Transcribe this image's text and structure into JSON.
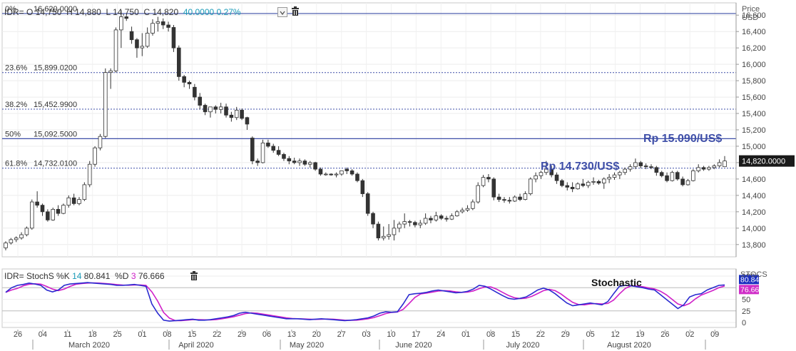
{
  "header": {
    "symbol": "IDR=",
    "open_label": "O",
    "open": "14,750",
    "high_label": "H",
    "high": "14,880",
    "low_label": "L",
    "low": "14,750",
    "close_label": "C",
    "close": "14,820",
    "change": "40.0000",
    "change_pct": "0.27%"
  },
  "stoch_header": {
    "label": "IDR= StochS %K",
    "k_period": "14",
    "k_value": "80.841",
    "d_label": "%D",
    "d_period": "3",
    "d_value": "76.666"
  },
  "price_axis_unit": [
    "Price",
    "USD"
  ],
  "stoch_axis_title": "STOCS",
  "last_price_tag": "14,820.0000",
  "k_tag": "80.841",
  "d_tag": "76.666",
  "annotations": {
    "high_level": "Rp 15.090/US$",
    "low_level": "Rp 14.730/US$",
    "stochastic": "Stochastic"
  },
  "colors": {
    "fib_line": "#3f4fa8",
    "k_line": "#2a2ad0",
    "d_line": "#d020c8",
    "up_candle": "#ffffff",
    "down_candle": "#333333",
    "last_tag_bg": "#1a1a1a",
    "k_tag_bg": "#1b2fc0",
    "d_tag_bg": "#d02ec8"
  },
  "chart_data": {
    "type": "candlestick",
    "y_range": [
      13650,
      16750
    ],
    "y_ticks": [
      13800,
      14000,
      14200,
      14400,
      14600,
      14800,
      15000,
      15200,
      15400,
      15600,
      15800,
      16000,
      16200,
      16400,
      16600
    ],
    "fibonacci": [
      {
        "pct": "0%",
        "value": 16620.0
      },
      {
        "pct": "23.6%",
        "value": 15899.02
      },
      {
        "pct": "38.2%",
        "value": 15452.99
      },
      {
        "pct": "50%",
        "value": 15092.5
      },
      {
        "pct": "61.8%",
        "value": 14732.01
      }
    ],
    "x_tick_labels": [
      "26",
      "04",
      "11",
      "18",
      "25",
      "01",
      "08",
      "15",
      "22",
      "29",
      "06",
      "13",
      "20",
      "27",
      "03",
      "10",
      "17",
      "24",
      "01",
      "08",
      "15",
      "22",
      "29",
      "05",
      "12",
      "19",
      "26",
      "02",
      "09"
    ],
    "month_labels": [
      "March 2020",
      "April 2020",
      "May 2020",
      "June 2020",
      "July 2020",
      "August 2020"
    ],
    "candles": [
      [
        13760,
        13840,
        13730,
        13820
      ],
      [
        13820,
        13880,
        13800,
        13860
      ],
      [
        13860,
        13900,
        13830,
        13880
      ],
      [
        13880,
        13950,
        13860,
        13920
      ],
      [
        13920,
        14020,
        13900,
        14000
      ],
      [
        14000,
        14350,
        13980,
        14320
      ],
      [
        14320,
        14450,
        14250,
        14280
      ],
      [
        14280,
        14300,
        14150,
        14200
      ],
      [
        14200,
        14230,
        14080,
        14100
      ],
      [
        14100,
        14250,
        14090,
        14230
      ],
      [
        14230,
        14280,
        14150,
        14180
      ],
      [
        14180,
        14300,
        14170,
        14280
      ],
      [
        14280,
        14400,
        14250,
        14370
      ],
      [
        14370,
        14420,
        14280,
        14300
      ],
      [
        14300,
        14380,
        14280,
        14350
      ],
      [
        14350,
        14560,
        14330,
        14530
      ],
      [
        14530,
        14820,
        14500,
        14780
      ],
      [
        14780,
        15000,
        14750,
        14980
      ],
      [
        14980,
        15150,
        14950,
        15120
      ],
      [
        15120,
        15950,
        15100,
        15900
      ],
      [
        15900,
        15950,
        15700,
        15920
      ],
      [
        15920,
        16450,
        15900,
        16420
      ],
      [
        16420,
        16660,
        16200,
        16580
      ],
      [
        16580,
        16600,
        16530,
        16560
      ],
      [
        16400,
        16460,
        16250,
        16300
      ],
      [
        16300,
        16320,
        16080,
        16200
      ],
      [
        16200,
        16380,
        16100,
        16220
      ],
      [
        16220,
        16450,
        16200,
        16380
      ],
      [
        16380,
        16550,
        16350,
        16500
      ],
      [
        16500,
        16580,
        16400,
        16520
      ],
      [
        16520,
        16560,
        16430,
        16480
      ],
      [
        16480,
        16520,
        16400,
        16450
      ],
      [
        16450,
        16480,
        16150,
        16200
      ],
      [
        16200,
        16230,
        15800,
        15850
      ],
      [
        15850,
        15870,
        15720,
        15780
      ],
      [
        15780,
        15800,
        15700,
        15760
      ],
      [
        15720,
        15760,
        15560,
        15600
      ],
      [
        15600,
        15650,
        15450,
        15500
      ],
      [
        15500,
        15520,
        15380,
        15420
      ],
      [
        15420,
        15480,
        15350,
        15480
      ],
      [
        15480,
        15500,
        15400,
        15450
      ],
      [
        15450,
        15530,
        15400,
        15480
      ],
      [
        15480,
        15520,
        15350,
        15380
      ],
      [
        15380,
        15420,
        15300,
        15350
      ],
      [
        15350,
        15480,
        15320,
        15440
      ],
      [
        15440,
        15460,
        15320,
        15340
      ],
      [
        15350,
        15360,
        15200,
        15270
      ],
      [
        15100,
        15120,
        14780,
        14820
      ],
      [
        14820,
        14850,
        14760,
        14800
      ],
      [
        14800,
        15080,
        14790,
        15040
      ],
      [
        15040,
        15080,
        14980,
        15000
      ],
      [
        15000,
        15030,
        14920,
        14950
      ],
      [
        14950,
        15000,
        14880,
        14900
      ],
      [
        14900,
        14920,
        14820,
        14850
      ],
      [
        14850,
        14880,
        14780,
        14820
      ],
      [
        14820,
        14860,
        14780,
        14800
      ],
      [
        14800,
        14850,
        14760,
        14820
      ],
      [
        14820,
        14840,
        14760,
        14780
      ],
      [
        14780,
        14820,
        14740,
        14800
      ],
      [
        14800,
        14810,
        14700,
        14720
      ],
      [
        14720,
        14740,
        14640,
        14660
      ],
      [
        14660,
        14680,
        14640,
        14660
      ],
      [
        14660,
        14670,
        14640,
        14650
      ],
      [
        14650,
        14680,
        14620,
        14660
      ],
      [
        14660,
        14700,
        14640,
        14700
      ],
      [
        14720,
        14740,
        14660,
        14700
      ],
      [
        14700,
        14720,
        14640,
        14660
      ],
      [
        14660,
        14680,
        14560,
        14580
      ],
      [
        14580,
        14600,
        14380,
        14420
      ],
      [
        14420,
        14440,
        14150,
        14180
      ],
      [
        14180,
        14200,
        14000,
        14050
      ],
      [
        14050,
        14080,
        13850,
        13880
      ],
      [
        13880,
        14020,
        13850,
        13900
      ],
      [
        13900,
        14050,
        13860,
        13920
      ],
      [
        13920,
        14100,
        13850,
        14000
      ],
      [
        14000,
        14080,
        13950,
        14050
      ],
      [
        14050,
        14180,
        14000,
        14080
      ],
      [
        14080,
        14100,
        14020,
        14070
      ],
      [
        14070,
        14090,
        14010,
        14040
      ],
      [
        14040,
        14100,
        14000,
        14060
      ],
      [
        14060,
        14180,
        14040,
        14120
      ],
      [
        14120,
        14150,
        14060,
        14100
      ],
      [
        14100,
        14200,
        14080,
        14150
      ],
      [
        14150,
        14170,
        14100,
        14120
      ],
      [
        14120,
        14150,
        14080,
        14110
      ],
      [
        14110,
        14180,
        14100,
        14150
      ],
      [
        14150,
        14220,
        14140,
        14200
      ],
      [
        14200,
        14250,
        14180,
        14220
      ],
      [
        14220,
        14280,
        14200,
        14240
      ],
      [
        14240,
        14350,
        14220,
        14320
      ],
      [
        14320,
        14560,
        14300,
        14520
      ],
      [
        14520,
        14650,
        14500,
        14620
      ],
      [
        14620,
        14660,
        14560,
        14600
      ],
      [
        14600,
        14620,
        14340,
        14380
      ],
      [
        14380,
        14420,
        14320,
        14350
      ],
      [
        14350,
        14380,
        14310,
        14340
      ],
      [
        14340,
        14380,
        14300,
        14330
      ],
      [
        14330,
        14400,
        14320,
        14380
      ],
      [
        14380,
        14420,
        14330,
        14350
      ],
      [
        14350,
        14450,
        14340,
        14420
      ],
      [
        14420,
        14620,
        14400,
        14600
      ],
      [
        14600,
        14680,
        14560,
        14640
      ],
      [
        14640,
        14700,
        14600,
        14680
      ],
      [
        14680,
        14820,
        14650,
        14720
      ],
      [
        14720,
        14760,
        14620,
        14650
      ],
      [
        14650,
        14680,
        14540,
        14580
      ],
      [
        14580,
        14600,
        14500,
        14520
      ],
      [
        14520,
        14560,
        14460,
        14500
      ],
      [
        14500,
        14560,
        14440,
        14480
      ],
      [
        14480,
        14560,
        14470,
        14540
      ],
      [
        14540,
        14600,
        14500,
        14520
      ],
      [
        14520,
        14580,
        14490,
        14560
      ],
      [
        14560,
        14620,
        14530,
        14570
      ],
      [
        14570,
        14590,
        14530,
        14550
      ],
      [
        14550,
        14620,
        14480,
        14600
      ],
      [
        14600,
        14660,
        14550,
        14620
      ],
      [
        14620,
        14680,
        14590,
        14650
      ],
      [
        14650,
        14700,
        14600,
        14680
      ],
      [
        14680,
        14740,
        14650,
        14720
      ],
      [
        14720,
        14780,
        14690,
        14750
      ],
      [
        14750,
        14850,
        14720,
        14800
      ],
      [
        14800,
        14820,
        14730,
        14760
      ],
      [
        14760,
        14790,
        14720,
        14750
      ],
      [
        14750,
        14780,
        14720,
        14740
      ],
      [
        14740,
        14760,
        14640,
        14680
      ],
      [
        14680,
        14700,
        14620,
        14640
      ],
      [
        14640,
        14680,
        14560,
        14580
      ],
      [
        14580,
        14700,
        14570,
        14680
      ],
      [
        14680,
        14700,
        14580,
        14600
      ],
      [
        14600,
        14630,
        14510,
        14530
      ],
      [
        14530,
        14600,
        14520,
        14580
      ],
      [
        14580,
        14720,
        14570,
        14700
      ],
      [
        14700,
        14780,
        14680,
        14740
      ],
      [
        14740,
        14760,
        14700,
        14720
      ],
      [
        14720,
        14760,
        14700,
        14740
      ],
      [
        14740,
        14780,
        14720,
        14760
      ],
      [
        14760,
        14840,
        14740,
        14800
      ],
      [
        14750,
        14880,
        14750,
        14820
      ]
    ],
    "stochastic": {
      "y_range": [
        0,
        100
      ],
      "y_ticks": [
        0,
        25,
        50,
        75,
        100
      ],
      "k": [
        65,
        75,
        80,
        82,
        85,
        83,
        80,
        70,
        66,
        70,
        80,
        83,
        84,
        85,
        86,
        85,
        84,
        83,
        82,
        80,
        80,
        81,
        82,
        80,
        78,
        40,
        20,
        5,
        3,
        4,
        5,
        6,
        7,
        5,
        5,
        6,
        8,
        10,
        12,
        15,
        20,
        22,
        20,
        18,
        16,
        14,
        12,
        10,
        8,
        8,
        8,
        7,
        6,
        7,
        8,
        7,
        6,
        5,
        4,
        5,
        6,
        8,
        10,
        14,
        20,
        23,
        22,
        23,
        40,
        60,
        62,
        63,
        65,
        68,
        70,
        68,
        66,
        64,
        65,
        67,
        72,
        80,
        78,
        72,
        65,
        58,
        52,
        50,
        52,
        55,
        62,
        70,
        74,
        70,
        62,
        52,
        42,
        36,
        38,
        40,
        42,
        40,
        38,
        45,
        62,
        78,
        80,
        79,
        77,
        75,
        72,
        70,
        60,
        50,
        40,
        30,
        38,
        55,
        60,
        62,
        70,
        75,
        80,
        81
      ]
    }
  }
}
